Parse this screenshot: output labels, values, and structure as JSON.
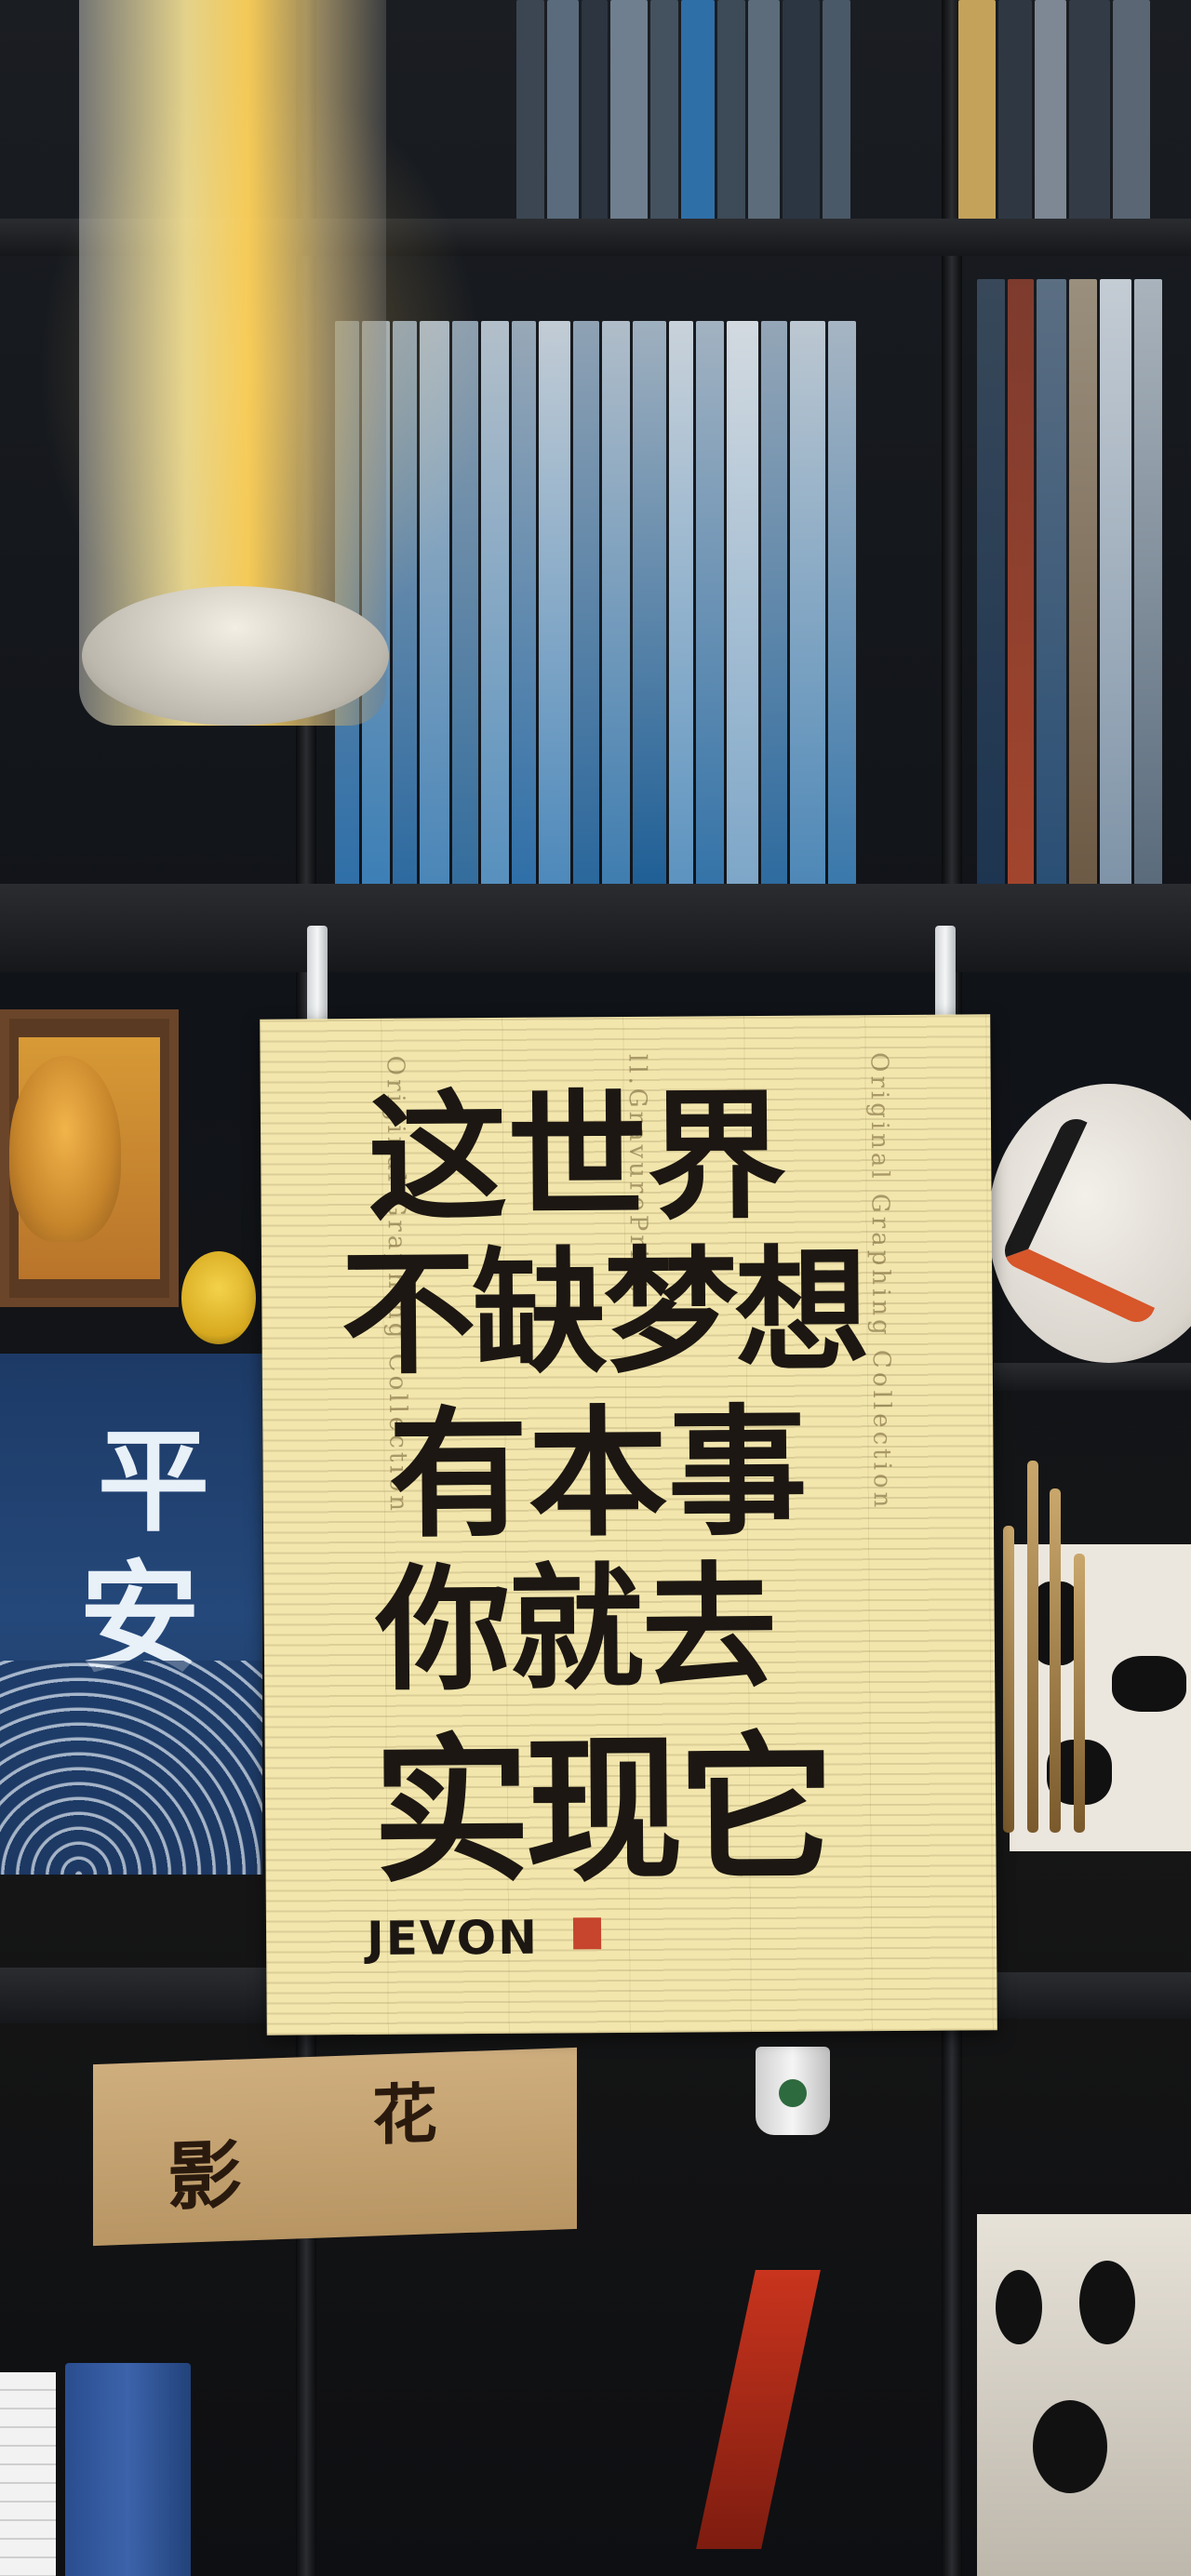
{
  "poster": {
    "lines": [
      "这世界",
      "不缺梦想",
      "有本事",
      "你就去",
      "实现它"
    ],
    "signature": "JEVON",
    "background_print": [
      "Original Graphing Collection",
      "ll.GravurePrint"
    ]
  },
  "colors": {
    "paper": "#f2e6ad",
    "ink": "#1c1712",
    "seal": "#c6452c",
    "lamp": "#ffd25a",
    "shelf": "#15171a"
  },
  "decor": {
    "blue_poster_chars": [
      "平",
      "安"
    ],
    "lower_paper_chars": [
      "花",
      "影"
    ]
  }
}
